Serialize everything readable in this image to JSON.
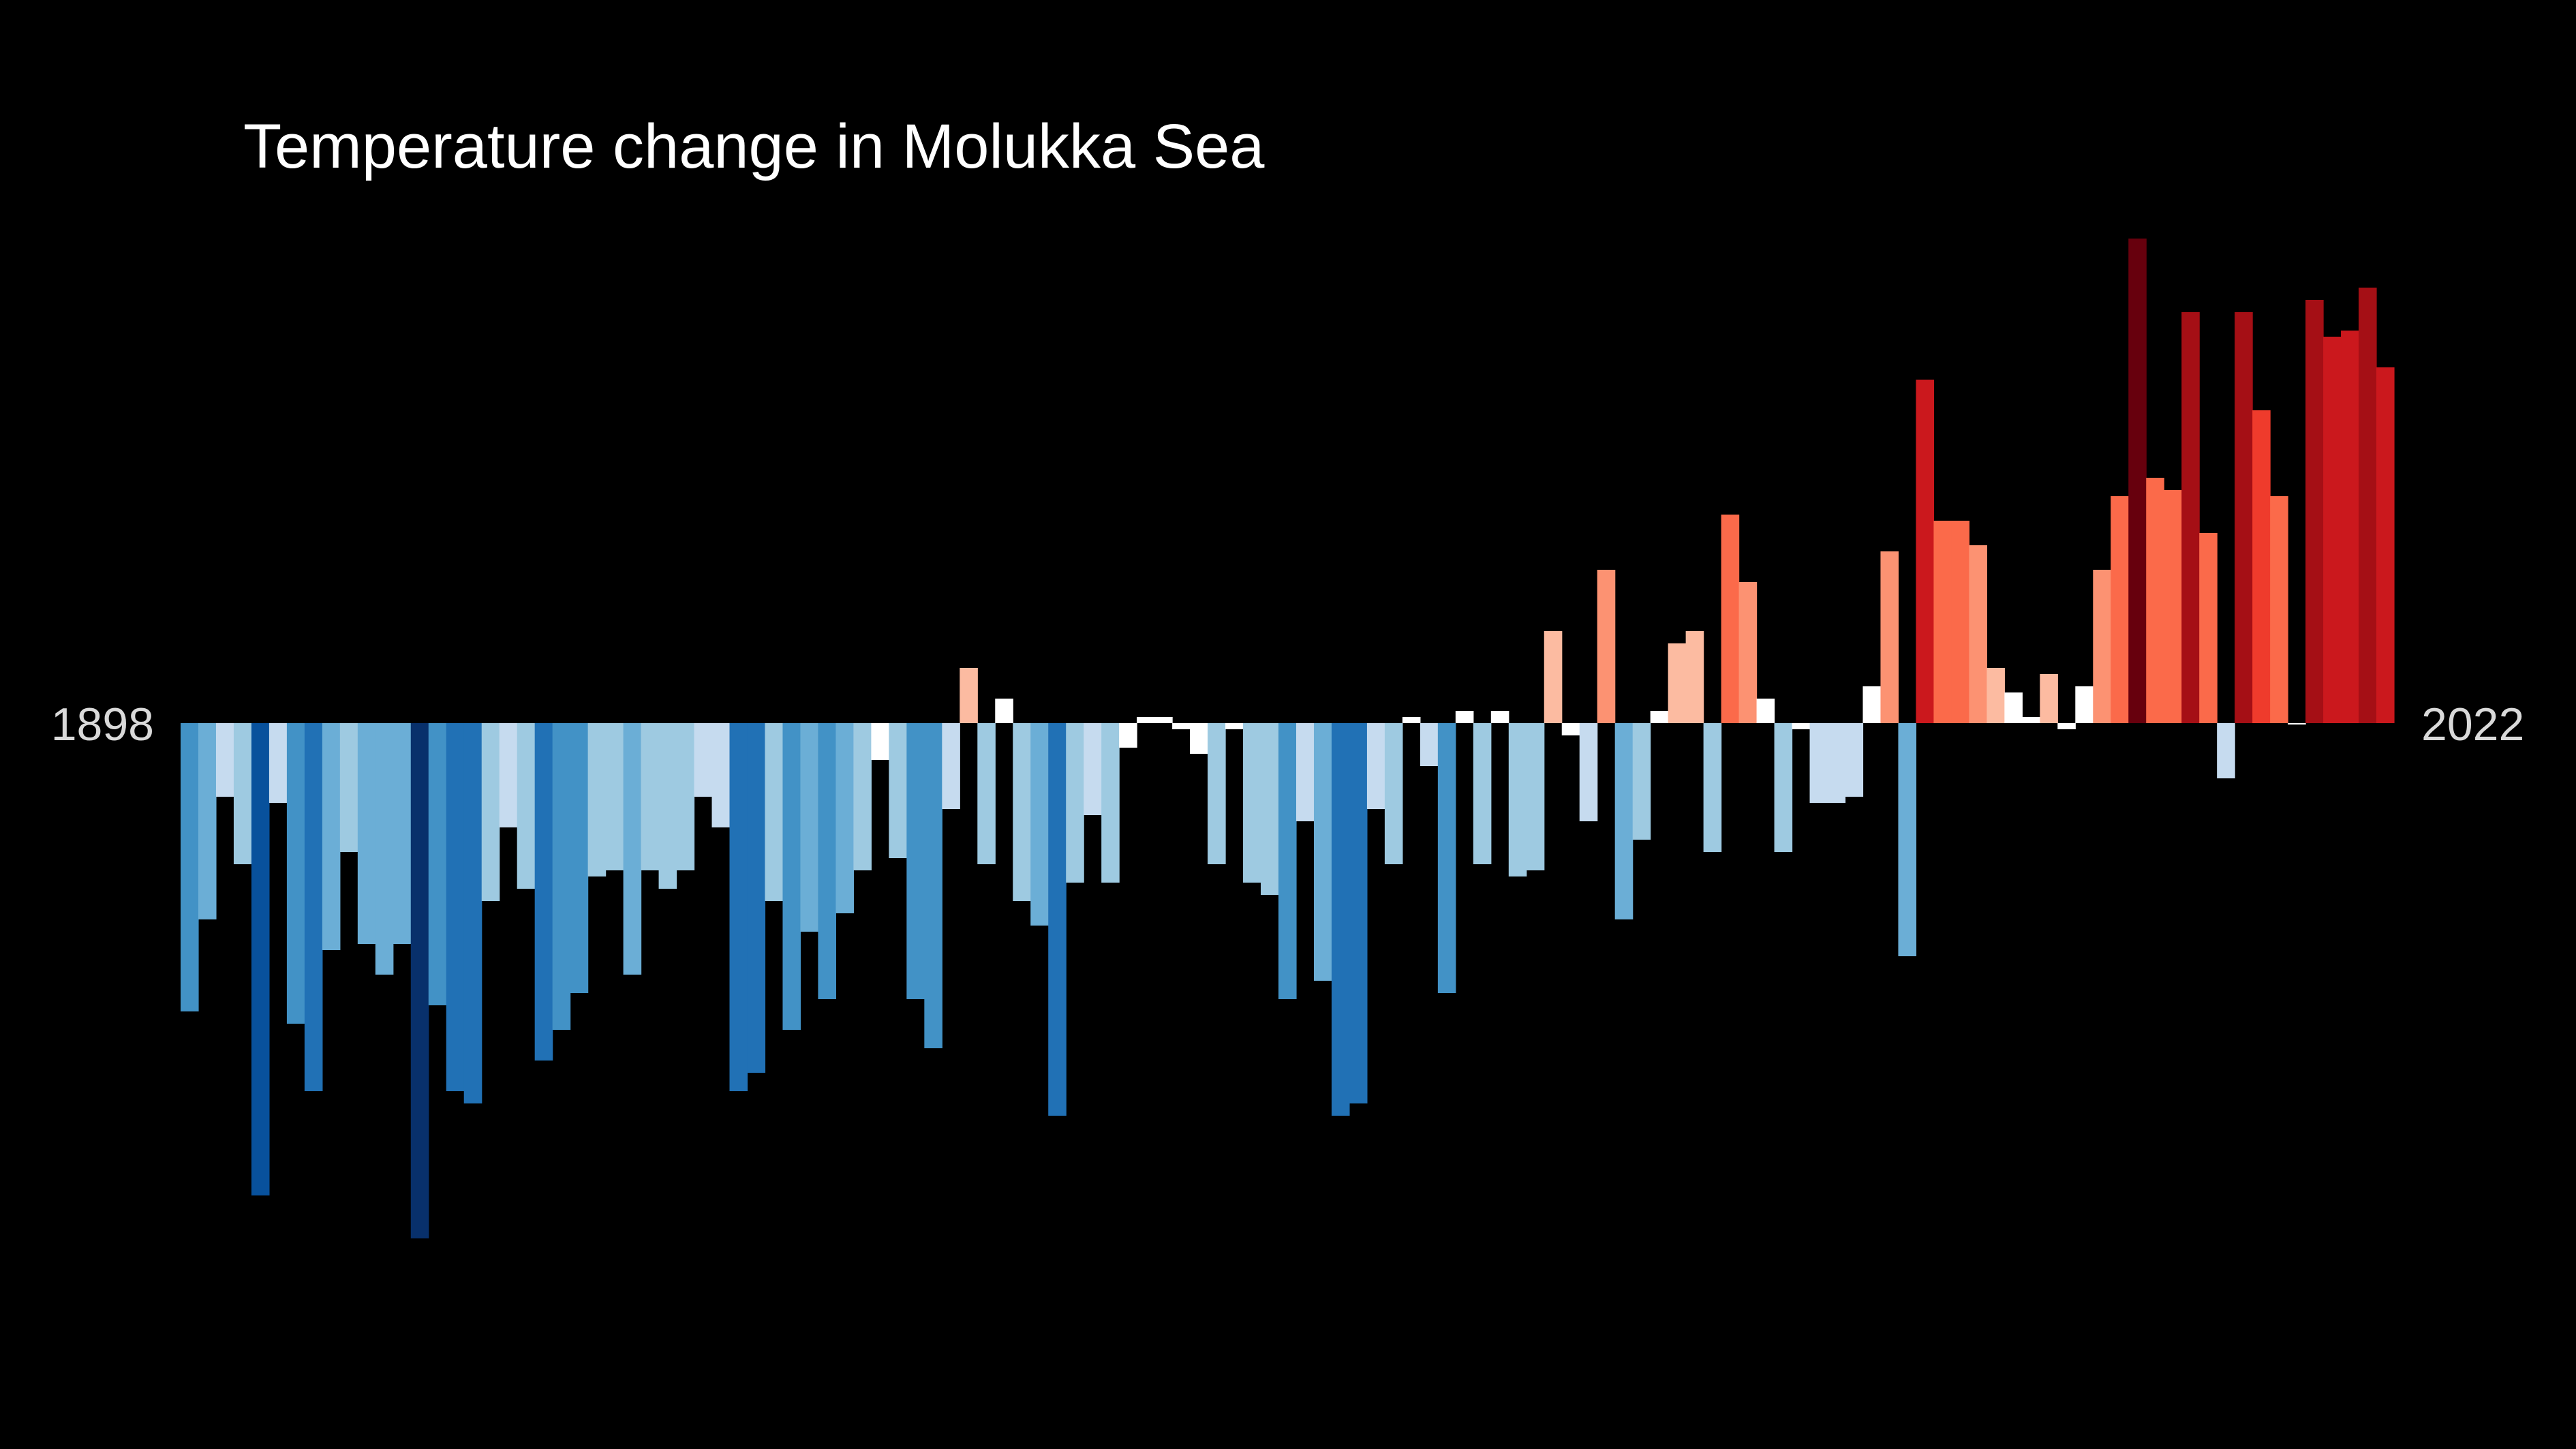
{
  "chart_data": {
    "type": "bar",
    "title": "Temperature change in Molukka Sea",
    "start_year_label": "1898",
    "end_year_label": "2022",
    "first_year": 1898,
    "last_year": 2022,
    "xlabel": "",
    "ylabel": "",
    "ylim": [
      -0.85,
      0.85
    ],
    "grid": false,
    "legend": "none",
    "background": "#000000",
    "colorscale": [
      "#08306b",
      "#08519c",
      "#2171b5",
      "#4292c6",
      "#6baed6",
      "#9ecae1",
      "#c6dbef",
      "#ffffff",
      "#fcbba1",
      "#fc9272",
      "#fb6a4a",
      "#ef3b2c",
      "#cb181d",
      "#a50f15",
      "#67000d"
    ],
    "values": [
      -0.47,
      -0.32,
      -0.12,
      -0.23,
      -0.77,
      -0.13,
      -0.49,
      -0.6,
      -0.37,
      -0.21,
      -0.36,
      -0.41,
      -0.36,
      -0.84,
      -0.46,
      -0.6,
      -0.62,
      -0.29,
      -0.17,
      -0.27,
      -0.55,
      -0.5,
      -0.44,
      -0.25,
      -0.24,
      -0.41,
      -0.24,
      -0.27,
      -0.24,
      -0.12,
      -0.17,
      -0.6,
      -0.57,
      -0.29,
      -0.5,
      -0.34,
      -0.45,
      -0.31,
      -0.24,
      -0.06,
      -0.22,
      -0.45,
      -0.53,
      -0.14,
      0.09,
      -0.23,
      0.04,
      -0.29,
      -0.33,
      -0.64,
      -0.26,
      -0.15,
      -0.26,
      -0.04,
      0.01,
      0.01,
      -0.01,
      -0.05,
      -0.23,
      -0.01,
      -0.26,
      -0.28,
      -0.45,
      -0.16,
      -0.42,
      -0.64,
      -0.62,
      -0.14,
      -0.23,
      0.01,
      -0.07,
      -0.44,
      0.02,
      -0.23,
      0.02,
      -0.25,
      -0.24,
      0.15,
      -0.02,
      -0.16,
      0.25,
      -0.32,
      -0.19,
      0.02,
      0.13,
      0.15,
      -0.21,
      0.34,
      0.23,
      0.04,
      -0.21,
      -0.01,
      -0.13,
      -0.13,
      -0.12,
      0.06,
      0.28,
      -0.38,
      0.56,
      0.33,
      0.33,
      0.29,
      0.09,
      0.05,
      0.01,
      0.08,
      -0.01,
      0.06,
      0.25,
      0.37,
      0.79,
      0.4,
      0.38,
      0.67,
      0.31,
      -0.09,
      0.67,
      0.51,
      0.37,
      0.0,
      0.69,
      0.63,
      0.64,
      0.71,
      0.58
    ]
  }
}
